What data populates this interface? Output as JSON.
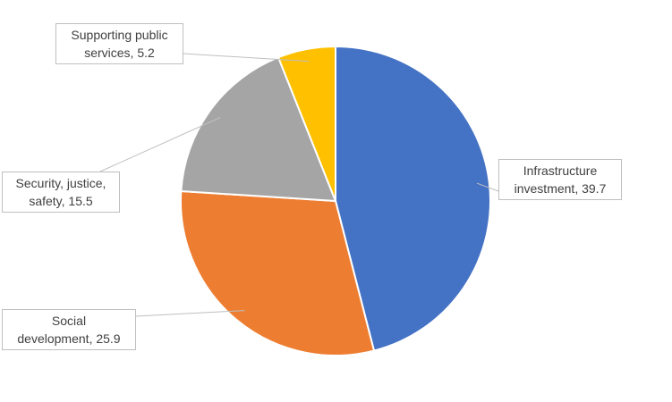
{
  "chart_data": {
    "type": "pie",
    "categories": [
      "Infrastructure investment",
      "Social development",
      "Security, justice, safety",
      "Supporting public services"
    ],
    "values": [
      39.7,
      25.9,
      15.5,
      5.2
    ],
    "colors": [
      "#4472c4",
      "#ed7d31",
      "#a5a5a5",
      "#ffc000"
    ]
  }
}
